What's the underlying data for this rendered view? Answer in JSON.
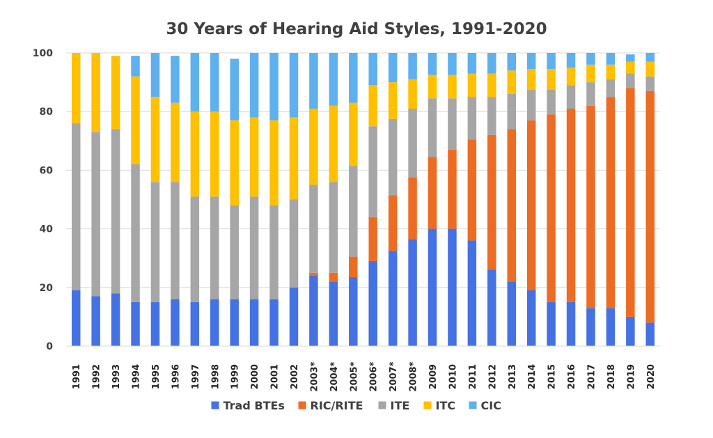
{
  "chart_data": {
    "type": "bar",
    "stacked": true,
    "title": "30 Years of Hearing Aid Styles, 1991-2020",
    "xlabel": "",
    "ylabel": "",
    "ylim": [
      0,
      100
    ],
    "yticks": [
      0,
      20,
      40,
      60,
      80,
      100
    ],
    "grid": true,
    "legend_position": "bottom",
    "categories": [
      "1991",
      "1992",
      "1993",
      "1994",
      "1995",
      "1996",
      "1997",
      "1998",
      "1999",
      "2000",
      "2001",
      "2002",
      "2003*",
      "2004*",
      "2005*",
      "2006*",
      "2007*",
      "2008*",
      "2009",
      "2010",
      "2011",
      "2012",
      "2013",
      "2014",
      "2015",
      "2016",
      "2017",
      "2018",
      "2019",
      "2020"
    ],
    "series": [
      {
        "name": "Trad BTEs",
        "color": "#4472e4",
        "values": [
          19,
          17,
          18,
          15,
          15,
          16,
          15,
          16,
          16,
          16,
          16,
          20,
          24,
          22,
          23.5,
          29,
          32.5,
          36.5,
          40,
          40,
          36,
          26,
          22,
          19,
          15,
          15,
          13,
          13,
          10,
          8
        ]
      },
      {
        "name": "RIC/RITE",
        "color": "#ed6c24",
        "values": [
          0,
          0,
          0,
          0,
          0,
          0,
          0,
          0,
          0,
          0,
          0,
          0,
          1,
          3,
          7,
          15,
          19,
          21,
          24.5,
          27,
          34.5,
          46,
          52,
          58,
          64,
          66,
          69,
          72,
          78,
          79
        ]
      },
      {
        "name": "ITE",
        "color": "#a6a6a6",
        "values": [
          57,
          56,
          56,
          47,
          41,
          40,
          36,
          35,
          32,
          35,
          32,
          30,
          30,
          31,
          31,
          31,
          26,
          23.5,
          20,
          17.5,
          14.5,
          13,
          12,
          10.5,
          8.5,
          8,
          8,
          6,
          5,
          5
        ]
      },
      {
        "name": "ITC",
        "color": "#ffc000",
        "values": [
          24,
          27,
          25,
          30,
          29,
          27,
          29,
          29,
          29,
          27,
          29,
          28,
          26,
          26,
          21.5,
          14,
          12.5,
          10,
          8,
          8,
          8,
          8,
          8,
          7,
          7,
          6,
          6,
          5,
          4,
          5
        ]
      },
      {
        "name": "CIC",
        "color": "#5eb0ee",
        "values": [
          0,
          0,
          0,
          7,
          15,
          16,
          20,
          20,
          21,
          22,
          23,
          22,
          19,
          18,
          17,
          11,
          10,
          9,
          7.5,
          7.5,
          7,
          7,
          6,
          5.5,
          5.5,
          5,
          4,
          4,
          2.5,
          3
        ]
      }
    ]
  }
}
